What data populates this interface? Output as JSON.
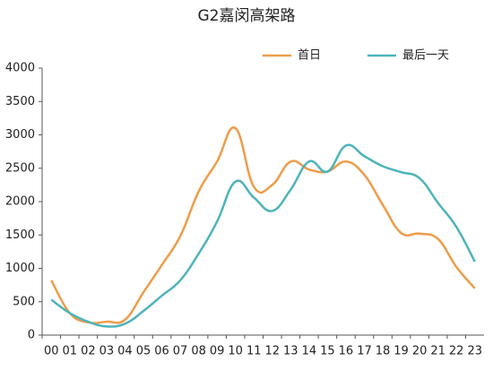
{
  "chart_data": {
    "type": "line",
    "title": "G2嘉闵高架路",
    "categories": [
      "00",
      "01",
      "02",
      "03",
      "04",
      "05",
      "06",
      "07",
      "08",
      "09",
      "10",
      "11",
      "12",
      "13",
      "14",
      "15",
      "16",
      "17",
      "18",
      "19",
      "20",
      "21",
      "22",
      "23"
    ],
    "series": [
      {
        "name": "首日",
        "color": "#ee9c4a",
        "values": [
          820,
          330,
          190,
          200,
          230,
          640,
          1050,
          1480,
          2150,
          2600,
          3100,
          2220,
          2250,
          2600,
          2480,
          2450,
          2600,
          2400,
          1950,
          1530,
          1520,
          1440,
          1020,
          700
        ]
      },
      {
        "name": "最后一天",
        "color": "#4db4b8",
        "values": [
          530,
          330,
          200,
          130,
          170,
          360,
          590,
          820,
          1220,
          1700,
          2300,
          2060,
          1860,
          2180,
          2600,
          2450,
          2840,
          2680,
          2530,
          2440,
          2350,
          1980,
          1620,
          1100
        ]
      }
    ],
    "ylim": [
      0,
      4000
    ],
    "yticks": [
      0,
      500,
      1000,
      1500,
      2000,
      2500,
      3000,
      3500,
      4000
    ],
    "grid": false,
    "legend": "top-right"
  }
}
